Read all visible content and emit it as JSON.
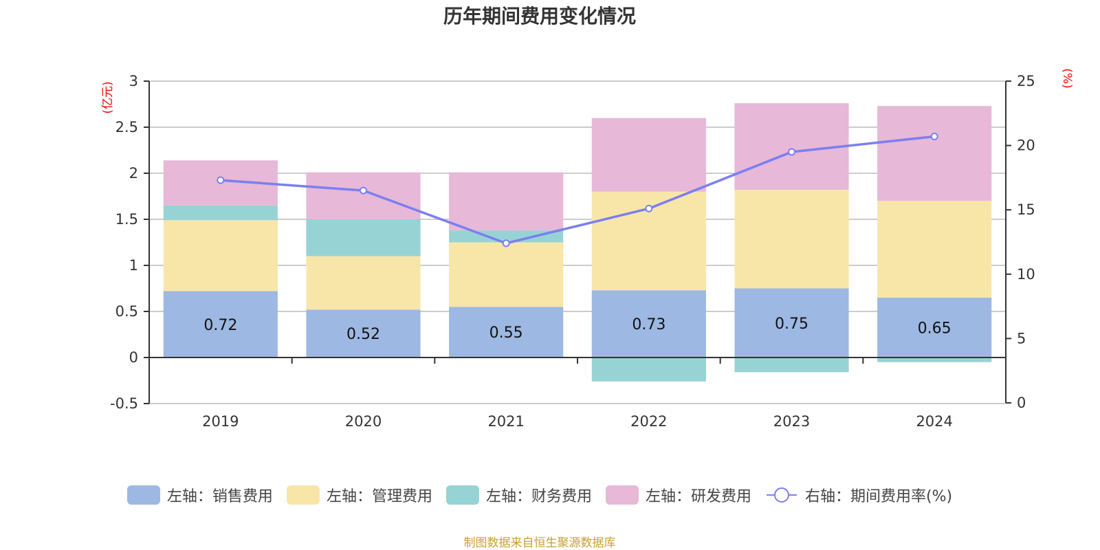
{
  "chart_data": {
    "type": "bar",
    "stacked": true,
    "title": "历年期间费用变化情况",
    "categories": [
      "2019",
      "2020",
      "2021",
      "2022",
      "2023",
      "2024"
    ],
    "left_axis": {
      "unit_label": "(亿元)",
      "ylim": [
        -0.5,
        3
      ],
      "ticks": [
        "3",
        "2.5",
        "2",
        "1.5",
        "1",
        "0.5",
        "0",
        "-0.5"
      ],
      "tick_values": [
        3,
        2.5,
        2,
        1.5,
        1,
        0.5,
        0,
        -0.5
      ]
    },
    "right_axis": {
      "unit_label": "(%)",
      "ylim": [
        0,
        25
      ],
      "ticks": [
        "25",
        "20",
        "15",
        "10",
        "5",
        "0"
      ],
      "tick_values": [
        25,
        20,
        15,
        10,
        5,
        0
      ]
    },
    "series": [
      {
        "name": "左轴：销售费用",
        "type": "bar",
        "axis": "left",
        "color": "#9db8e2",
        "values": [
          0.72,
          0.52,
          0.55,
          0.73,
          0.75,
          0.65
        ],
        "show_labels": true
      },
      {
        "name": "左轴：管理费用",
        "type": "bar",
        "axis": "left",
        "color": "#f8e6a9",
        "values": [
          0.77,
          0.58,
          0.7,
          1.07,
          1.07,
          1.05
        ],
        "show_labels": false
      },
      {
        "name": "左轴：财务费用",
        "type": "bar",
        "axis": "left",
        "color": "#97d3d4",
        "values": [
          0.16,
          0.4,
          0.13,
          -0.26,
          -0.16,
          -0.05
        ],
        "show_labels": false
      },
      {
        "name": "左轴：研发费用",
        "type": "bar",
        "axis": "left",
        "color": "#e7b8d8",
        "values": [
          0.49,
          0.51,
          0.63,
          0.8,
          0.94,
          1.03
        ],
        "show_labels": false
      },
      {
        "name": "右轴：期间费用率(%)",
        "type": "line",
        "axis": "right",
        "color": "#7b7ff0",
        "values": [
          17.3,
          16.5,
          12.4,
          15.1,
          19.5,
          20.7
        ]
      }
    ],
    "data_labels": [
      "0.72",
      "0.52",
      "0.55",
      "0.73",
      "0.75",
      "0.65"
    ],
    "grid": true,
    "legend_position": "bottom"
  },
  "legend": [
    {
      "label": "左轴：销售费用",
      "kind": "swatch",
      "color": "#9db8e2"
    },
    {
      "label": "左轴：管理费用",
      "kind": "swatch",
      "color": "#f8e6a9"
    },
    {
      "label": "左轴：财务费用",
      "kind": "swatch",
      "color": "#97d3d4"
    },
    {
      "label": "左轴：研发费用",
      "kind": "swatch",
      "color": "#e7b8d8"
    },
    {
      "label": "右轴：期间费用率(%)",
      "kind": "line-circle",
      "color": "#7b7ff0"
    }
  ],
  "footer": "制图数据来自恒生聚源数据库"
}
